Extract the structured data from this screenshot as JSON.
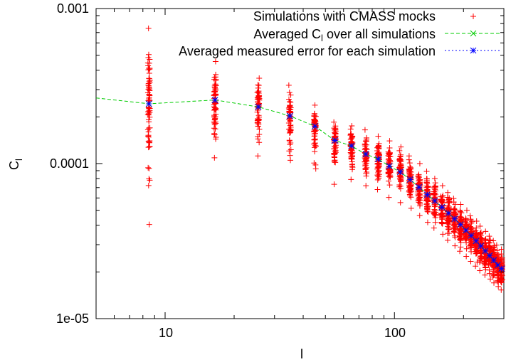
{
  "chart_data": {
    "type": "scatter",
    "x_scale": "log",
    "y_scale": "log",
    "xlim": [
      5,
      300
    ],
    "ylim": [
      1e-05,
      0.001
    ],
    "xlabel": "l",
    "ylabel": "C",
    "ylabel_sub": "l",
    "x_ticks": [
      {
        "value": 10,
        "label": "10"
      },
      {
        "value": 100,
        "label": "100"
      }
    ],
    "y_ticks": [
      {
        "value": 1e-05,
        "label": "1e-05"
      },
      {
        "value": 0.0001,
        "label": "0.0001"
      },
      {
        "value": 0.001,
        "label": "0.001"
      }
    ],
    "legend_position": "top-right",
    "colors": {
      "simulations": "#ff0000",
      "averaged": "#00cc00",
      "error": "#0000ff"
    },
    "legend": [
      {
        "key": "simulations",
        "text": "Simulations with CMASS mocks",
        "marker": "plus"
      },
      {
        "key": "averaged",
        "text_before": "Averaged C",
        "text_sub": "l",
        "text_after": " over all simulations",
        "marker": "x"
      },
      {
        "key": "error",
        "text": "Averaged measured error for each simulation",
        "marker": "star"
      }
    ],
    "bins": [
      {
        "l": 8.5,
        "mean": 0.000243,
        "min": 4.05e-05,
        "max": 0.000745
      },
      {
        "l": 16.5,
        "mean": 0.000257,
        "min": 0.000109,
        "max": 0.000455
      },
      {
        "l": 25.5,
        "mean": 0.000232,
        "min": 0.000112,
        "max": 0.000355
      },
      {
        "l": 35.0,
        "mean": 0.000203,
        "min": 0.000105,
        "max": 0.00032
      },
      {
        "l": 45.0,
        "mean": 0.000174,
        "min": 9.25e-05,
        "max": 0.000238
      },
      {
        "l": 55.0,
        "mean": 0.000141,
        "min": 7.35e-05,
        "max": 0.000185
      },
      {
        "l": 65.0,
        "mean": 0.00013,
        "min": 7.9e-05,
        "max": 0.000175
      },
      {
        "l": 75.0,
        "mean": 0.000115,
        "min": 7.2e-05,
        "max": 0.000165
      },
      {
        "l": 85.0,
        "mean": 0.000107,
        "min": 6.8e-05,
        "max": 0.00015
      },
      {
        "l": 95.0,
        "mean": 9.63e-05,
        "min": 6.05e-05,
        "max": 0.00014
      },
      {
        "l": 106.0,
        "mean": 8.83e-05,
        "min": 5.6e-05,
        "max": 0.000128
      },
      {
        "l": 117.0,
        "mean": 7.89e-05,
        "min": 5.15e-05,
        "max": 0.000112
      },
      {
        "l": 128.0,
        "mean": 7.04e-05,
        "min": 4.62e-05,
        "max": 0.0001
      },
      {
        "l": 139.0,
        "mean": 6.3e-05,
        "min": 4.18e-05,
        "max": 8.9e-05
      },
      {
        "l": 150.0,
        "mean": 5.74e-05,
        "min": 3.84e-05,
        "max": 8e-05
      },
      {
        "l": 161.0,
        "mean": 5.23e-05,
        "min": 3.5e-05,
        "max": 7.2e-05
      },
      {
        "l": 172.0,
        "mean": 4.79e-05,
        "min": 3.2e-05,
        "max": 6.5e-05
      },
      {
        "l": 183.0,
        "mean": 4.4e-05,
        "min": 2.95e-05,
        "max": 5.95e-05
      },
      {
        "l": 194.0,
        "mean": 4.04e-05,
        "min": 2.72e-05,
        "max": 5.45e-05
      },
      {
        "l": 205.0,
        "mean": 3.71e-05,
        "min": 2.52e-05,
        "max": 5e-05
      },
      {
        "l": 216.0,
        "mean": 3.43e-05,
        "min": 2.34e-05,
        "max": 4.6e-05
      },
      {
        "l": 227.0,
        "mean": 3.17e-05,
        "min": 2.18e-05,
        "max": 4.25e-05
      },
      {
        "l": 238.0,
        "mean": 2.94e-05,
        "min": 2.04e-05,
        "max": 3.95e-05
      },
      {
        "l": 249.0,
        "mean": 2.73e-05,
        "min": 1.91e-05,
        "max": 3.65e-05
      },
      {
        "l": 260.0,
        "mean": 2.55e-05,
        "min": 1.8e-05,
        "max": 3.4e-05
      },
      {
        "l": 271.0,
        "mean": 2.38e-05,
        "min": 1.7e-05,
        "max": 3.18e-05
      },
      {
        "l": 282.0,
        "mean": 2.22e-05,
        "min": 1.61e-05,
        "max": 2.98e-05
      },
      {
        "l": 293.0,
        "mean": 2.1e-05,
        "min": 1.53e-05,
        "max": 2.8e-05
      }
    ],
    "averaged_line": {
      "x": [
        5,
        8.5,
        16.5,
        25.5,
        35,
        45,
        55,
        65,
        75,
        85,
        95,
        106,
        117,
        128,
        139,
        150,
        161,
        172,
        183,
        194,
        205,
        216,
        227,
        238,
        249,
        260,
        271,
        282,
        293,
        300
      ],
      "y": [
        0.000265,
        0.000243,
        0.000257,
        0.000232,
        0.000203,
        0.000174,
        0.000141,
        0.00013,
        0.000115,
        0.000107,
        9.63e-05,
        8.83e-05,
        7.89e-05,
        7.04e-05,
        6.3e-05,
        5.74e-05,
        5.23e-05,
        4.79e-05,
        4.4e-05,
        4.04e-05,
        3.71e-05,
        3.43e-05,
        3.17e-05,
        2.94e-05,
        2.73e-05,
        2.55e-05,
        2.38e-05,
        2.22e-05,
        2.1e-05,
        2.04e-05
      ]
    }
  }
}
